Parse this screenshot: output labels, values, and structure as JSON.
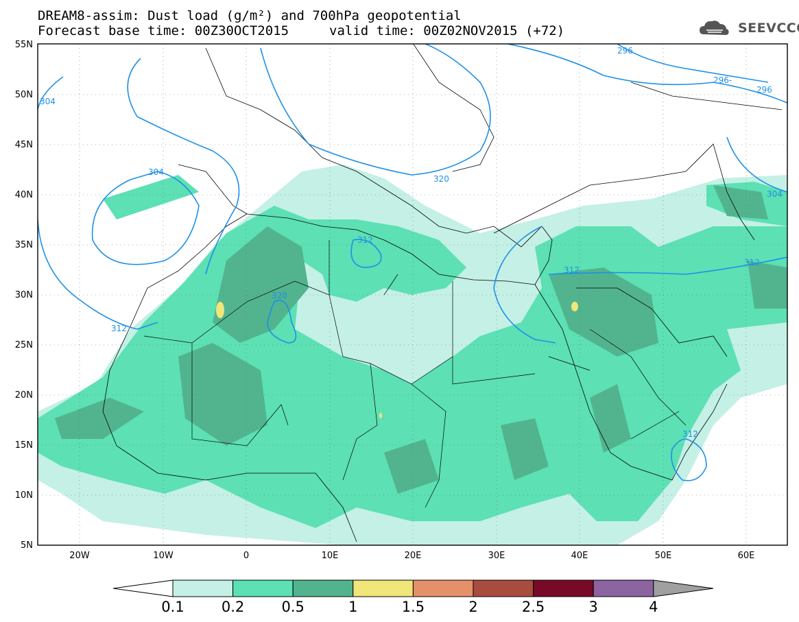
{
  "header": {
    "title_line1": "DREAM8-assim: Dust load (g/m²) and 700hPa geopotential",
    "title_line2": "Forecast base time: 00Z30OCT2015",
    "valid_time": "valid time: 00Z02NOV2015 (+72)",
    "logo_text": "SEEVCCC"
  },
  "map": {
    "lat_labels": [
      "55N",
      "50N",
      "45N",
      "40N",
      "35N",
      "30N",
      "25N",
      "20N",
      "15N",
      "10N",
      "5N"
    ],
    "lon_labels": [
      "20W",
      "10W",
      "0",
      "10E",
      "20E",
      "30E",
      "40E",
      "50E",
      "60E"
    ],
    "contour_labels": [
      "304",
      "296",
      "296-",
      "296",
      "304",
      "320",
      "304",
      "312",
      "320",
      "312",
      "312",
      "312",
      "312"
    ],
    "dust_color_02": "#5ce0b4",
    "dust_color_01": "#c4f0e6",
    "dust_color_05": "#52b48e",
    "contour_color": "#1e90e6"
  },
  "colorbar": {
    "labels": [
      "0.1",
      "0.2",
      "0.5",
      "1",
      "1.5",
      "2",
      "2.5",
      "3",
      "4"
    ],
    "colors": [
      "#ffffff",
      "#c4f0e6",
      "#5ce0b4",
      "#52b48e",
      "#f0e67a",
      "#e6906a",
      "#a84c40",
      "#780a28",
      "#8c64a0",
      "#a0a0a0"
    ]
  }
}
